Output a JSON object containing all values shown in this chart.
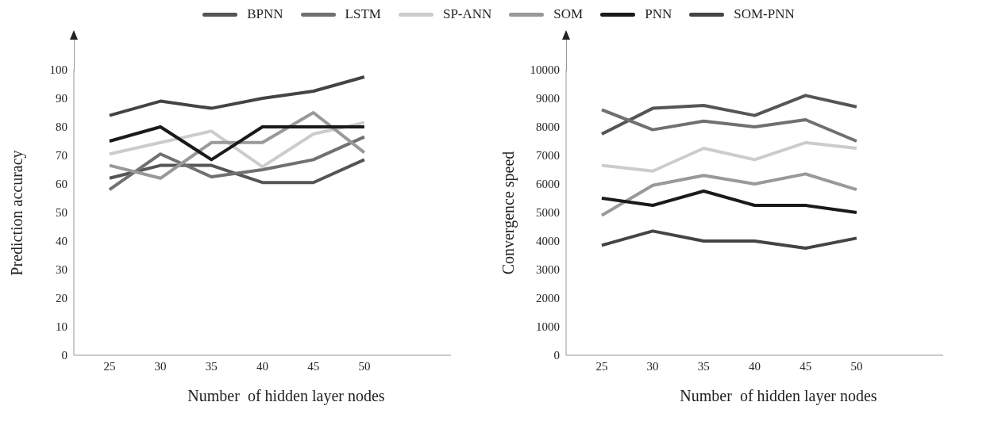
{
  "chart_data": [
    {
      "type": "line",
      "categories": [
        "25",
        "30",
        "35",
        "40",
        "45",
        "50"
      ],
      "xlabel": "Number  of hidden layer nodes",
      "ylabel": "Prediction accuracy",
      "ylim": [
        0,
        100
      ],
      "yticks": [
        0,
        10,
        20,
        30,
        40,
        50,
        60,
        70,
        80,
        90,
        100
      ],
      "grid": false,
      "legend": "top",
      "marker": "none",
      "series": [
        {
          "name": "BPNN",
          "color": "#555555",
          "values": [
            62,
            66.5,
            66.5,
            60.5,
            60.5,
            68.5
          ]
        },
        {
          "name": "LSTM",
          "color": "#707070",
          "values": [
            58,
            70.5,
            62.5,
            65,
            68.5,
            76.5
          ]
        },
        {
          "name": "SP-ANN",
          "color": "#cccccc",
          "values": [
            70.5,
            74.5,
            78.5,
            66,
            77.5,
            81.5
          ]
        },
        {
          "name": "SOM",
          "color": "#999999",
          "values": [
            66.5,
            62,
            74.5,
            74.5,
            85,
            71
          ]
        },
        {
          "name": "PNN",
          "color": "#1a1a1a",
          "values": [
            75,
            80,
            68.5,
            80,
            80,
            80
          ]
        },
        {
          "name": "SOM-PNN",
          "color": "#444444",
          "values": [
            84,
            89,
            86.5,
            90,
            92.5,
            97.5
          ]
        }
      ]
    },
    {
      "type": "line",
      "categories": [
        "25",
        "30",
        "35",
        "40",
        "45",
        "50"
      ],
      "xlabel": "Number  of hidden layer nodes",
      "ylabel": "Convergence speed",
      "ylim": [
        0,
        10000
      ],
      "yticks": [
        0,
        1000,
        2000,
        3000,
        4000,
        5000,
        6000,
        7000,
        8000,
        9000,
        10000
      ],
      "grid": false,
      "marker": "none",
      "series": [
        {
          "color": "#555555",
          "values": [
            7750,
            8650,
            8750,
            8400,
            9100,
            8700
          ]
        },
        {
          "color": "#707070",
          "values": [
            8600,
            7900,
            8200,
            8000,
            8250,
            7500
          ]
        },
        {
          "color": "#cccccc",
          "values": [
            6650,
            6450,
            7250,
            6850,
            7450,
            7250
          ]
        },
        {
          "color": "#999999",
          "values": [
            4900,
            5950,
            6300,
            6000,
            6350,
            5800
          ]
        },
        {
          "color": "#1a1a1a",
          "values": [
            5500,
            5250,
            5750,
            5250,
            5250,
            5000
          ]
        },
        {
          "color": "#444444",
          "values": [
            3850,
            4350,
            4000,
            4000,
            3750,
            4100
          ]
        }
      ]
    }
  ]
}
